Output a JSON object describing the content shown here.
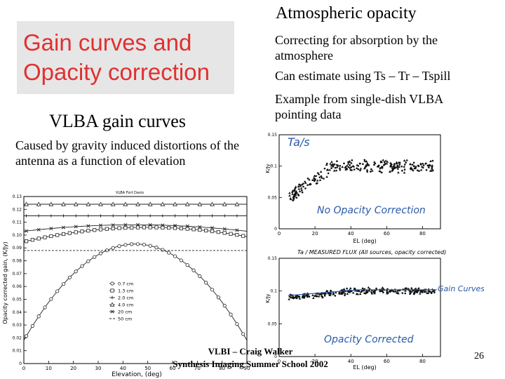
{
  "slide": {
    "heading_line1": "Gain curves and",
    "heading_line2": "Opacity correction",
    "right_title": "Atmospheric opacity",
    "bullets": [
      "Correcting for absorption by the atmosphere",
      "Can estimate using Ts – Tr – Tspill",
      "Example from single-dish VLBA pointing data"
    ],
    "left_title": "VLBA gain curves",
    "left_text": "Caused by gravity induced distortions of the antenna as a function of elevation",
    "footer_line1": "VLBI – Craig Walker",
    "footer_line2": "Synthesis Imaging Summer School 2002",
    "page_number": "26"
  },
  "chart_data": [
    {
      "type": "line",
      "title": "VLBA Fort Davis",
      "xlabel": "Elevation, (deg)",
      "ylabel": "Opacity corrected gain, (K/Jy)",
      "xlim": [
        0,
        90
      ],
      "ylim": [
        0,
        0.13
      ],
      "xticks": [
        "0",
        "10",
        "20",
        "30",
        "40",
        "50",
        "60",
        "70",
        "80",
        "90"
      ],
      "yticks": [
        "0",
        "0.01",
        "0.02",
        "0.03",
        "0.04",
        "0.05",
        "0.06",
        "0.07",
        "0.08",
        "0.09",
        "0.10",
        "0.11",
        "0.12",
        "0.13"
      ],
      "series": [
        {
          "name": "0.7 cm",
          "marker": "circle",
          "model": {
            "peak": 0.093,
            "center": 45,
            "curvature": 3.7e-05
          }
        },
        {
          "name": "1.3 cm",
          "marker": "square",
          "model": {
            "peak": 0.106,
            "center": 50,
            "curvature": 4.5e-06
          }
        },
        {
          "name": "2.0 cm",
          "marker": "plus",
          "model": {
            "peak": 0.115,
            "center": 45,
            "curvature": 0.0
          }
        },
        {
          "name": "4.0 cm",
          "marker": "triangle",
          "model": {
            "peak": 0.124,
            "center": 45,
            "curvature": 0.0
          }
        },
        {
          "name": "20 cm",
          "marker": "cross",
          "model": {
            "peak": 0.108,
            "center": 45,
            "curvature": 2.5e-06
          }
        },
        {
          "name": "50 cm",
          "marker": "dash",
          "model": {
            "peak": 0.088,
            "center": 45,
            "curvature": 0.0
          }
        }
      ],
      "legend_position": "bottom-center"
    },
    {
      "type": "scatter",
      "title": "",
      "ylabel": "K/Jy",
      "xlabel": "EL (deg)",
      "xlim": [
        0,
        90
      ],
      "ylim": [
        0,
        0.15
      ],
      "xticks": [
        "0",
        "20",
        "40",
        "60",
        "80"
      ],
      "yticks": [
        "0",
        "0.05",
        "0.1",
        "0.15"
      ],
      "annotations": [
        "Ta/s",
        "No Opacity Correction"
      ],
      "trend": {
        "low_elev_value": 0.05,
        "plateau": 0.1,
        "plateau_elev": 30
      }
    },
    {
      "type": "scatter",
      "title": "Ta / MEASURED FLUX (All sources, opacity corrected)",
      "ylabel": "K/Jy",
      "xlabel": "EL (deg)",
      "xlim": [
        0,
        90
      ],
      "ylim": [
        0,
        0.15
      ],
      "xticks": [
        "0",
        "20",
        "40",
        "60",
        "80"
      ],
      "yticks": [
        "0",
        "0.05",
        "0.1",
        "0.15"
      ],
      "annotations": [
        "Opacity Corrected",
        "Gain Curves RCP+LCP"
      ],
      "trend": {
        "low_elev_value": 0.09,
        "plateau": 0.1,
        "plateau_elev": 40
      }
    }
  ]
}
